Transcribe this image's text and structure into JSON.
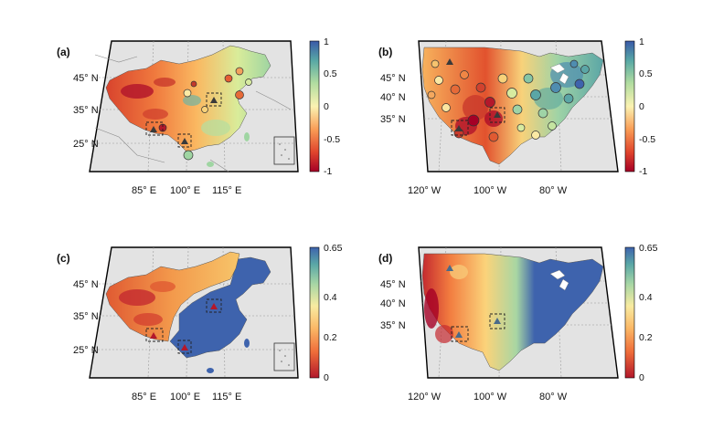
{
  "panels": [
    {
      "id": "a",
      "label": "(a)",
      "lat_labels": [
        "45° N",
        "35° N",
        "25° N"
      ],
      "lon_labels": [
        "85° E",
        "100° E",
        "115° E"
      ],
      "colorbar": {
        "ticks": [
          "1",
          "0.5",
          "0",
          "-0.5",
          "-1"
        ],
        "min": -1,
        "max": 1,
        "palette": "diverging RdYlBu"
      }
    },
    {
      "id": "b",
      "label": "(b)",
      "lat_labels": [
        "45° N",
        "40° N",
        "35° N"
      ],
      "lon_labels": [
        "120° W",
        "100° W",
        "80° W"
      ],
      "colorbar": {
        "ticks": [
          "1",
          "0.5",
          "0",
          "-0.5",
          "-1"
        ],
        "min": -1,
        "max": 1,
        "palette": "diverging RdYlBu"
      }
    },
    {
      "id": "c",
      "label": "(c)",
      "lat_labels": [
        "45° N",
        "35° N",
        "25° N"
      ],
      "lon_labels": [
        "85° E",
        "100° E",
        "115° E"
      ],
      "colorbar": {
        "ticks": [
          "0.65",
          "0.4",
          "0.2",
          "0"
        ],
        "min": 0,
        "max": 0.65,
        "palette": "sequential RdYlBu"
      }
    },
    {
      "id": "d",
      "label": "(d)",
      "lat_labels": [
        "45° N",
        "40° N",
        "35° N"
      ],
      "lon_labels": [
        "120° W",
        "100° W",
        "80° W"
      ],
      "colorbar": {
        "ticks": [
          "0.65",
          "0.4",
          "0.2",
          "0"
        ],
        "min": 0,
        "max": 0.65,
        "palette": "sequential RdYlBu"
      }
    }
  ],
  "colors": {
    "land_gray": "#e3e3e3",
    "frame": "#000000",
    "deep_blue": "#3e63ad",
    "dark_red": "#b4182b",
    "orange": "#f58a45",
    "yellow": "#f8e58e",
    "teal": "#54a9a3"
  }
}
